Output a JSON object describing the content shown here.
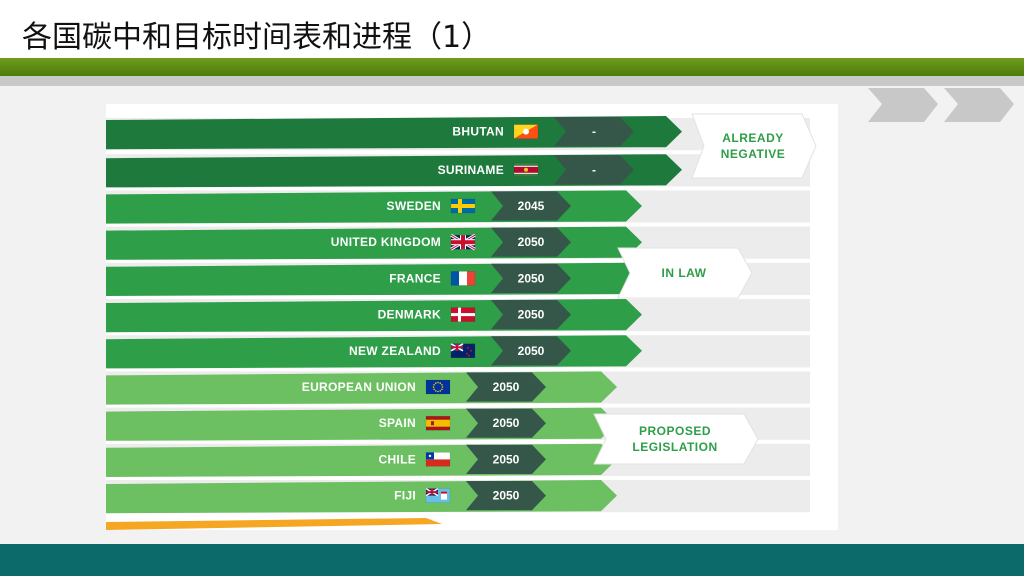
{
  "slide": {
    "title": "各国碳中和目标时间表和进程（1）"
  },
  "chart": {
    "rows": [
      {
        "country": "BHUTAN",
        "year": "-",
        "flag": "bhutan-flag",
        "status": "already_negative"
      },
      {
        "country": "SURINAME",
        "year": "-",
        "flag": "suriname-flag",
        "status": "already_negative"
      },
      {
        "country": "SWEDEN",
        "year": "2045",
        "flag": "sweden-flag",
        "status": "in_law"
      },
      {
        "country": "UNITED KINGDOM",
        "year": "2050",
        "flag": "uk-flag",
        "status": "in_law"
      },
      {
        "country": "FRANCE",
        "year": "2050",
        "flag": "france-flag",
        "status": "in_law"
      },
      {
        "country": "DENMARK",
        "year": "2050",
        "flag": "denmark-flag",
        "status": "in_law"
      },
      {
        "country": "NEW ZEALAND",
        "year": "2050",
        "flag": "new-zealand-flag",
        "status": "in_law"
      },
      {
        "country": "EUROPEAN UNION",
        "year": "2050",
        "flag": "eu-flag",
        "status": "proposed"
      },
      {
        "country": "SPAIN",
        "year": "2050",
        "flag": "spain-flag",
        "status": "proposed"
      },
      {
        "country": "CHILE",
        "year": "2050",
        "flag": "chile-flag",
        "status": "proposed"
      },
      {
        "country": "FIJI",
        "year": "2050",
        "flag": "fiji-flag",
        "status": "proposed"
      }
    ],
    "groups": {
      "already_negative": [
        "ALREADY",
        "NEGATIVE"
      ],
      "in_law": [
        "IN LAW"
      ],
      "proposed": [
        "PROPOSED",
        "LEGISLATION"
      ]
    },
    "colors": {
      "already_negative": "#1e7a3c",
      "in_law": "#2e9e48",
      "proposed": "#6cc061",
      "year_box": "#35574a",
      "group_text": "#2e9e48",
      "footer": "#0c6a6a",
      "band": "#5d8c14"
    }
  }
}
